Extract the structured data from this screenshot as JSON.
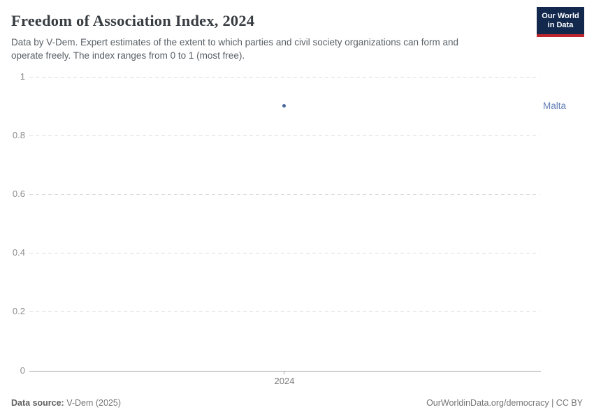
{
  "header": {
    "title": "Freedom of Association Index, 2024",
    "subtitle_line1": "Data by V-Dem. Expert estimates of the extent to which parties and civil society organizations can form and",
    "subtitle_line2": "operate freely. The index ranges from 0 to 1 (most free).",
    "logo": {
      "line1": "Our World",
      "line2": "in Data",
      "bg_color": "#12294d",
      "accent_color": "#c0262e"
    }
  },
  "chart_data": {
    "type": "scatter",
    "title": "Freedom of Association Index, 2024",
    "subtitle": "Data by V-Dem. Expert estimates of the extent to which parties and civil society organizations can form and operate freely. The index ranges from 0 to 1 (most free).",
    "series": [
      {
        "name": "Malta",
        "color": "#4a69a0",
        "points": [
          {
            "x": 2024,
            "y": 0.9
          }
        ]
      }
    ],
    "xlabel": "",
    "ylabel": "",
    "x_ticks": [
      "2024"
    ],
    "y_ticks": [
      "1",
      "0.8",
      "0.6",
      "0.4",
      "0.2",
      "0"
    ],
    "ylim": [
      0,
      1
    ],
    "xlim_note": "single year 2024, tick centered on axis",
    "grid": "horizontal dashed gridlines, solid baseline at 0",
    "legend_position": "entity label right of plot, vertically aligned with point"
  },
  "plot": {
    "y_tick_labels": [
      "1",
      "0.8",
      "0.6",
      "0.4",
      "0.2",
      "0"
    ],
    "x_tick_label": "2024",
    "entity_label": "Malta",
    "entity_color": "#6380b4",
    "point_color": "#4a69a0"
  },
  "footer": {
    "source_label": "Data source:",
    "source_value": " V-Dem (2025)",
    "url": "OurWorldinData.org/democracy",
    "separator": " | ",
    "license": "CC BY"
  }
}
